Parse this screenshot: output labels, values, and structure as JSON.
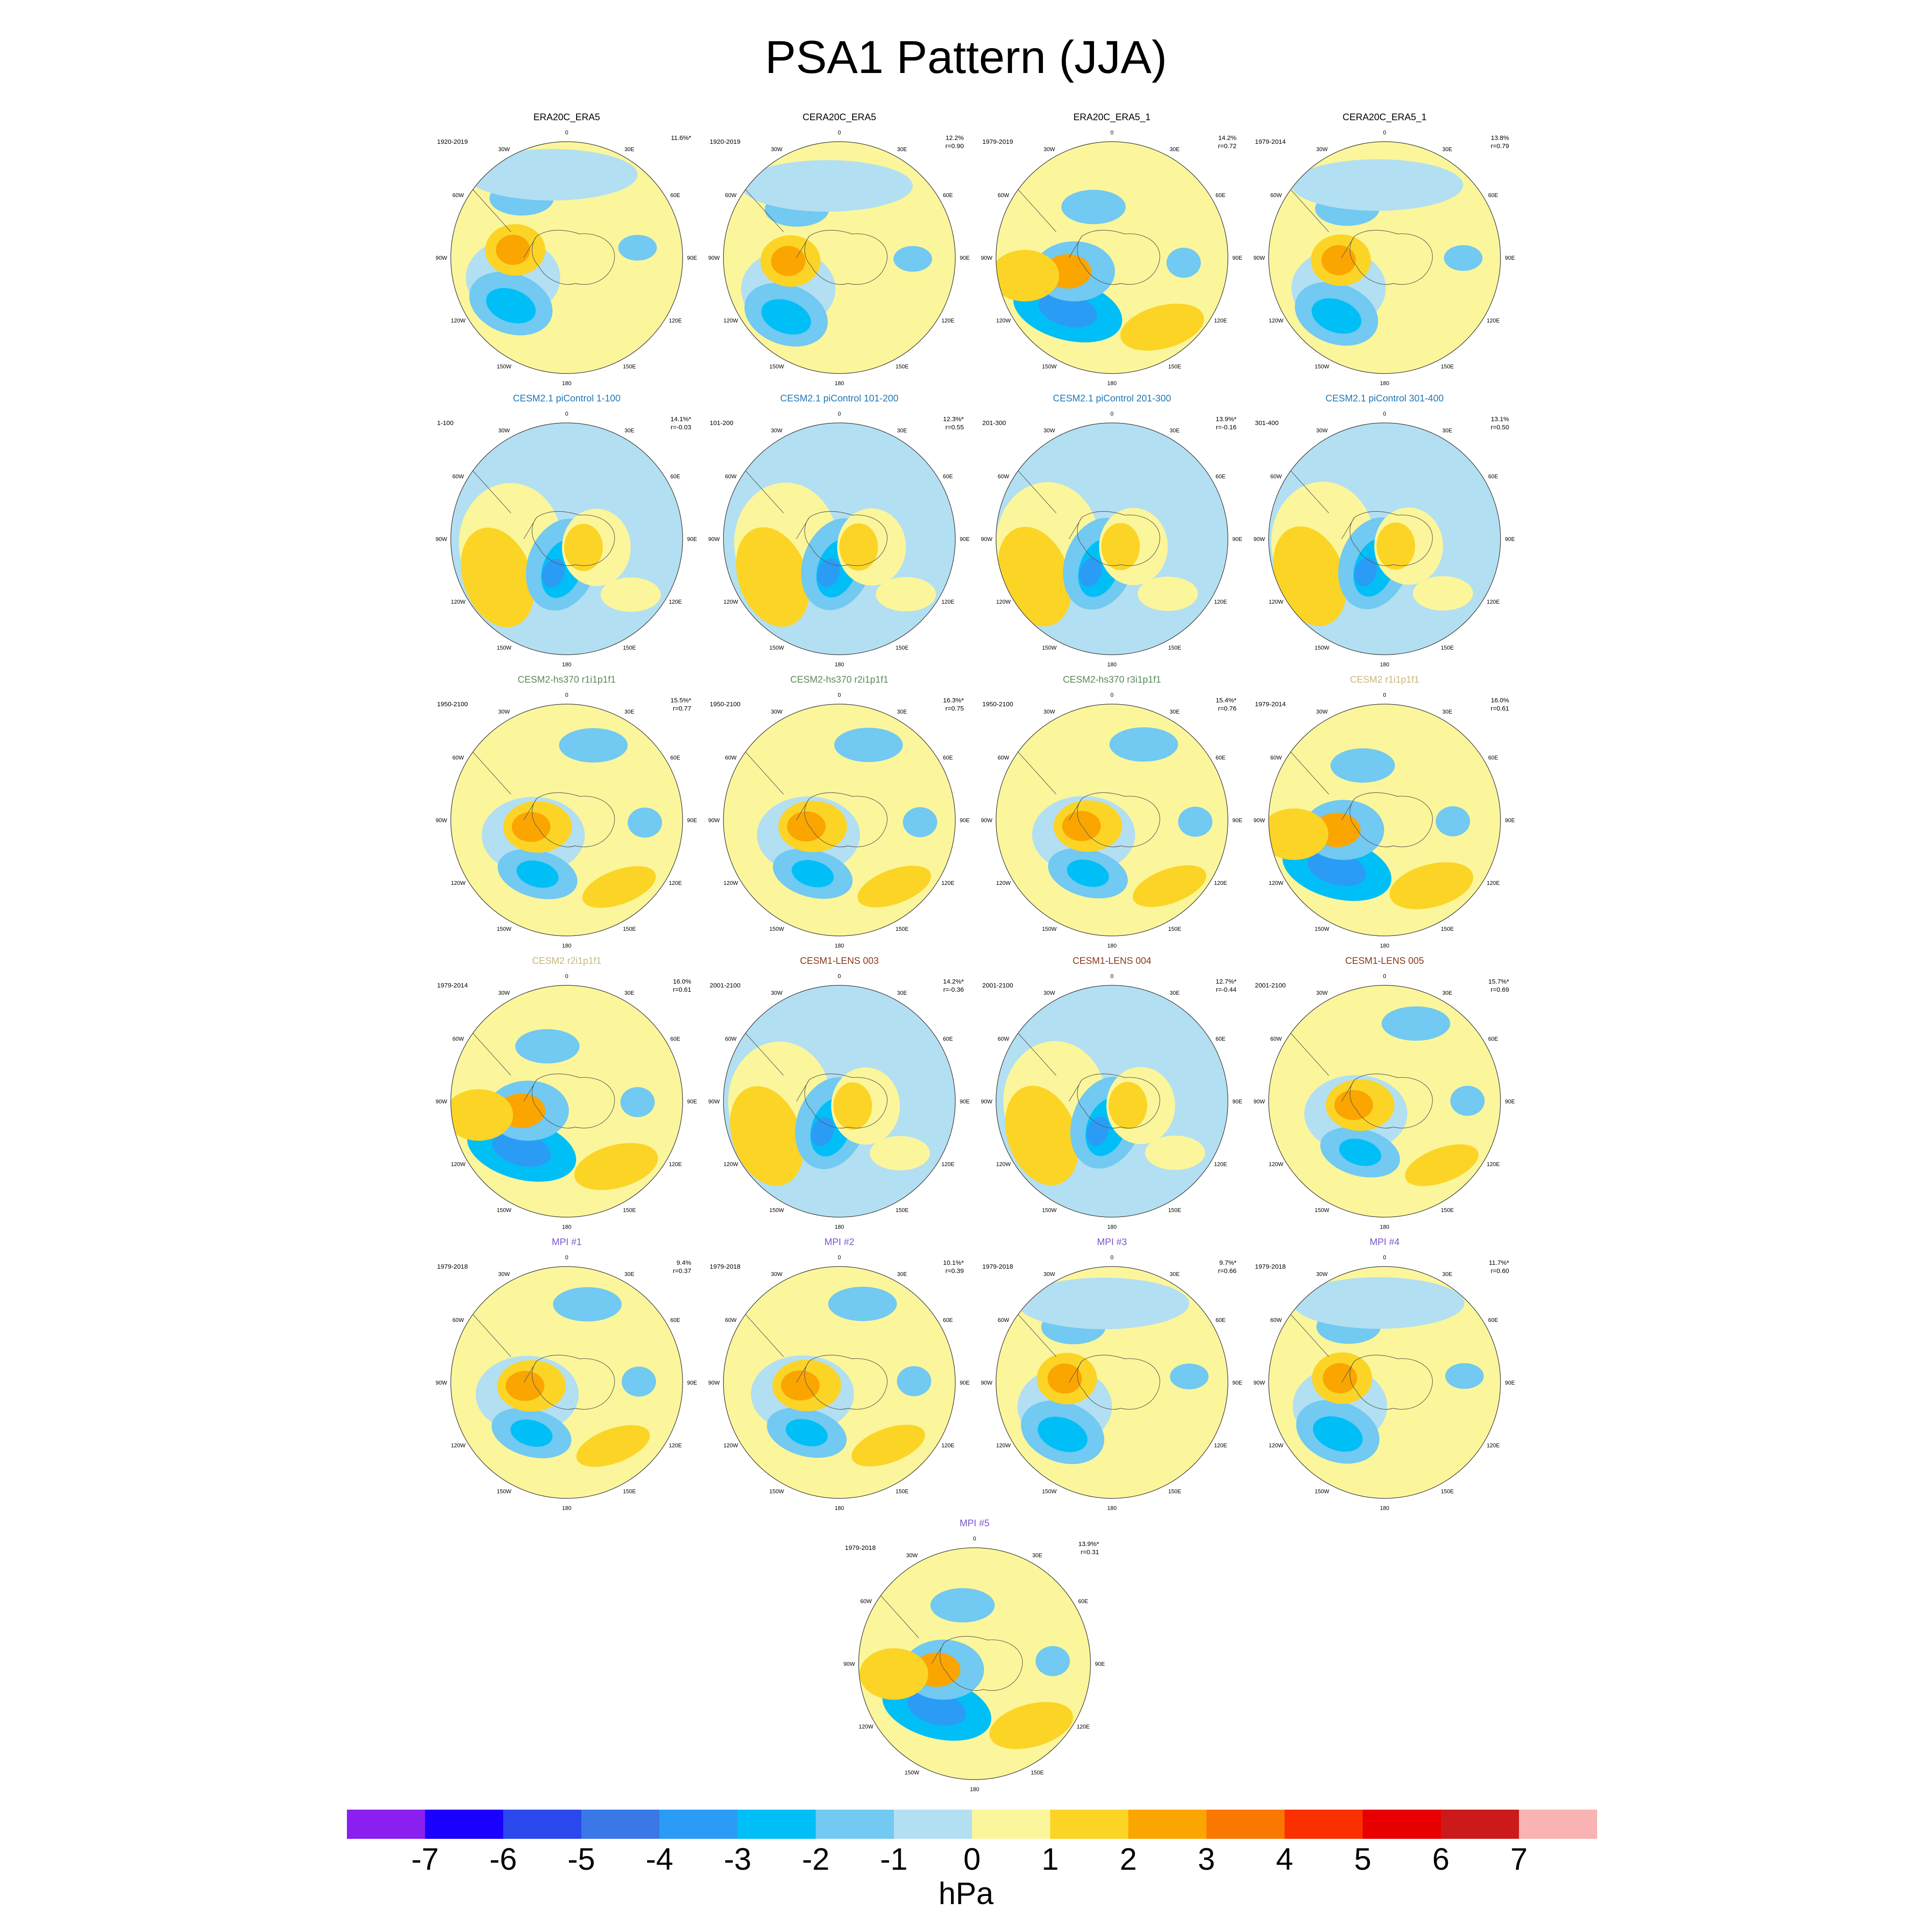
{
  "title": "PSA1 Pattern (JJA)",
  "chart_data": {
    "type": "heatmap",
    "projection": "south polar stereographic",
    "grid": "7x4 arrangement of polar maps (last row single centered map)",
    "lon_labels": [
      "0",
      "30E",
      "60E",
      "90E",
      "120E",
      "150E",
      "180",
      "150W",
      "120W",
      "90W",
      "60W",
      "30W"
    ],
    "colorbar": {
      "unit": "hPa",
      "ticks": [
        "-7",
        "-6",
        "-5",
        "-4",
        "-3",
        "-2",
        "-1",
        "0",
        "1",
        "2",
        "3",
        "4",
        "5",
        "6",
        "7"
      ],
      "colors": [
        "#8a1ff0",
        "#1a00ff",
        "#2a48ec",
        "#3a78e8",
        "#2b9cf6",
        "#00bff6",
        "#72c9f1",
        "#b3dff2",
        "#fbf69b",
        "#fbd426",
        "#fba500",
        "#fb7800",
        "#fb3000",
        "#e80000",
        "#cc1a1a",
        "#f9b3b3"
      ]
    },
    "panels": [
      {
        "title": "ERA20C_ERA5",
        "title_color": "#000000",
        "period": "1920-2019",
        "stats": [
          "11.6%*"
        ]
      },
      {
        "title": "CERA20C_ERA5",
        "title_color": "#000000",
        "period": "1920-2019",
        "stats": [
          "12.2%",
          "r=0.90"
        ]
      },
      {
        "title": "ERA20C_ERA5_1",
        "title_color": "#000000",
        "period": "1979-2019",
        "stats": [
          "14.2%",
          "r=0.72"
        ]
      },
      {
        "title": "CERA20C_ERA5_1",
        "title_color": "#000000",
        "period": "1979-2014",
        "stats": [
          "13.8%",
          "r=0.79"
        ]
      },
      {
        "title": "CESM2.1 piControl 1-100",
        "title_color": "#1f77b4",
        "period": "1-100",
        "stats": [
          "14.1%*",
          "r=-0.03"
        ]
      },
      {
        "title": "CESM2.1 piControl 101-200",
        "title_color": "#1f77b4",
        "period": "101-200",
        "stats": [
          "12.3%*",
          "r=0.55"
        ]
      },
      {
        "title": "CESM2.1 piControl 201-300",
        "title_color": "#1f77b4",
        "period": "201-300",
        "stats": [
          "13.9%*",
          "r=-0.16"
        ]
      },
      {
        "title": "CESM2.1 piControl 301-400",
        "title_color": "#1f77b4",
        "period": "301-400",
        "stats": [
          "13.1%",
          "r=0.50"
        ]
      },
      {
        "title": "CESM2-hs370 r1i1p1f1",
        "title_color": "#5a8a5a",
        "period": "1950-2100",
        "stats": [
          "15.5%*",
          "r=0.77"
        ]
      },
      {
        "title": "CESM2-hs370 r2i1p1f1",
        "title_color": "#5a8a5a",
        "period": "1950-2100",
        "stats": [
          "16.3%*",
          "r=0.75"
        ]
      },
      {
        "title": "CESM2-hs370 r3i1p1f1",
        "title_color": "#5a8a5a",
        "period": "1950-2100",
        "stats": [
          "15.4%*",
          "r=0.76"
        ]
      },
      {
        "title": "CESM2 r1i1p1f1",
        "title_color": "#c9b77a",
        "period": "1979-2014",
        "stats": [
          "16.0%",
          "r=0.61"
        ]
      },
      {
        "title": "CESM2 r2i1p1f1",
        "title_color": "#c9b77a",
        "period": "1979-2014",
        "stats": [
          "16.0%",
          "r=0.61"
        ]
      },
      {
        "title": "CESM1-LENS 003",
        "title_color": "#8b3a1a",
        "period": "2001-2100",
        "stats": [
          "14.2%*",
          "r=-0.36"
        ]
      },
      {
        "title": "CESM1-LENS 004",
        "title_color": "#8b3a1a",
        "period": "2001-2100",
        "stats": [
          "12.7%*",
          "r=-0.44"
        ]
      },
      {
        "title": "CESM1-LENS 005",
        "title_color": "#8b3a1a",
        "period": "2001-2100",
        "stats": [
          "15.7%*",
          "r=0.69"
        ]
      },
      {
        "title": "MPI #1",
        "title_color": "#7b55c9",
        "period": "1979-2018",
        "stats": [
          "9.4%",
          "r=0.37"
        ]
      },
      {
        "title": "MPI #2",
        "title_color": "#7b55c9",
        "period": "1979-2018",
        "stats": [
          "10.1%*",
          "r=0.39"
        ]
      },
      {
        "title": "MPI #3",
        "title_color": "#7b55c9",
        "period": "1979-2018",
        "stats": [
          "9.7%*",
          "r=0.66"
        ]
      },
      {
        "title": "MPI #4",
        "title_color": "#7b55c9",
        "period": "1979-2018",
        "stats": [
          "11.7%*",
          "r=0.60"
        ]
      },
      {
        "title": "MPI #5",
        "title_color": "#7b55c9",
        "period": "1979-2018",
        "stats": [
          "13.9%*",
          "r=0.31"
        ]
      }
    ]
  }
}
